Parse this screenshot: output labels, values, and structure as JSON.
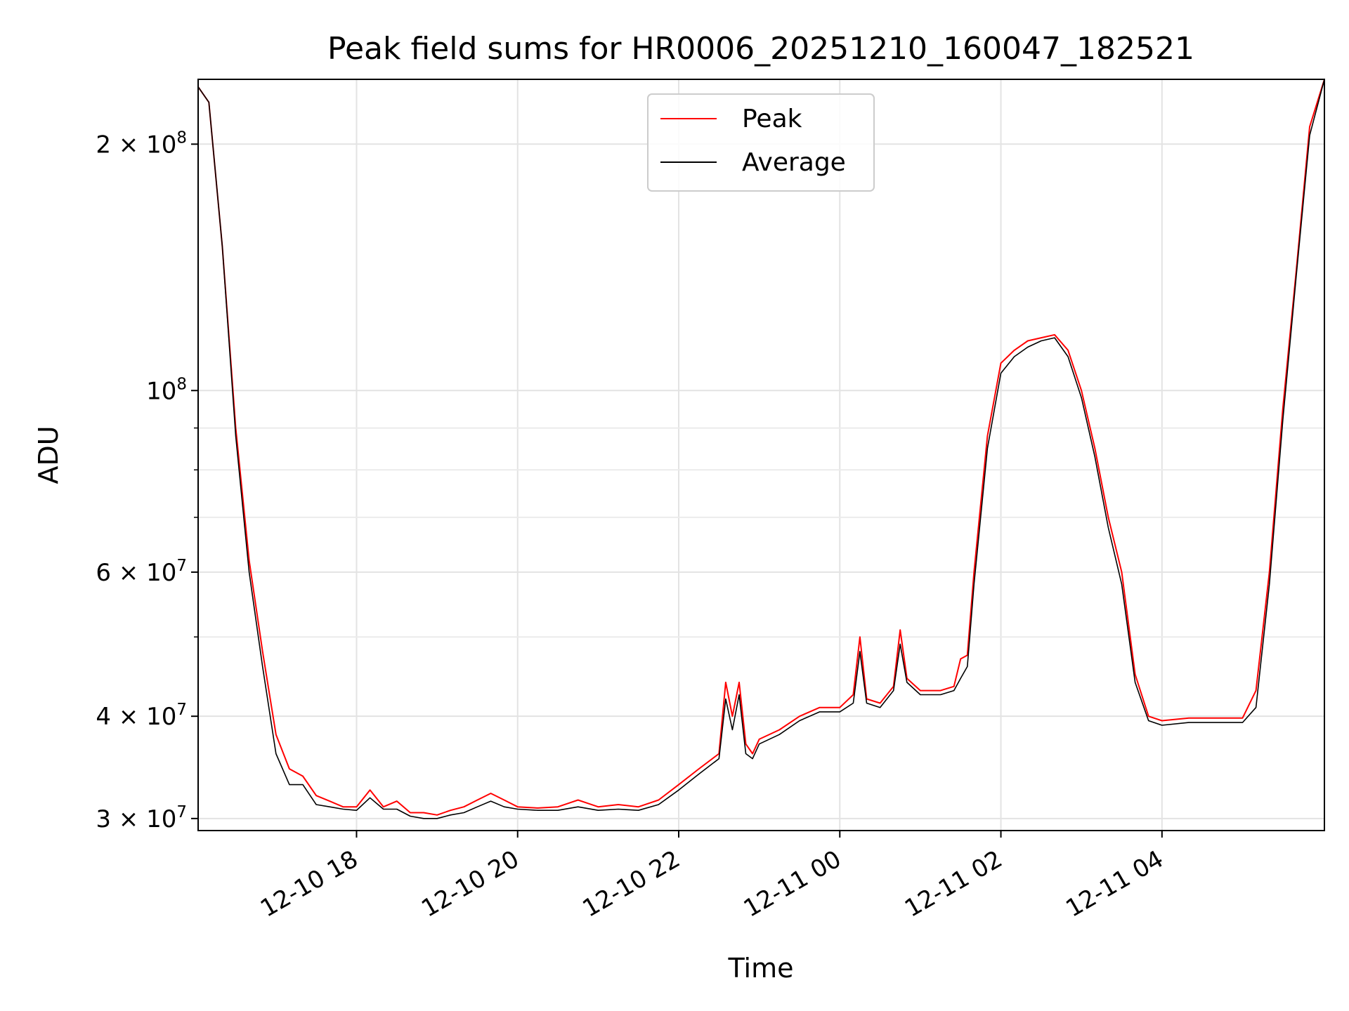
{
  "chart_data": {
    "type": "line",
    "title": "Peak field sums for HR0006_20251210_160047_182521",
    "xlabel": "Time",
    "ylabel": "ADU",
    "yscale": "log",
    "ylim": [
      29000000,
      240000000
    ],
    "xlim": [
      "2025-12-10 16:02",
      "2025-12-11 06:01"
    ],
    "grid": true,
    "legend_position": "upper center",
    "x_ticks": [
      {
        "value": "2025-12-10 18:00",
        "label": "12-10 18"
      },
      {
        "value": "2025-12-10 20:00",
        "label": "12-10 20"
      },
      {
        "value": "2025-12-10 22:00",
        "label": "12-10 22"
      },
      {
        "value": "2025-12-11 00:00",
        "label": "12-11 00"
      },
      {
        "value": "2025-12-11 02:00",
        "label": "12-11 02"
      },
      {
        "value": "2025-12-11 04:00",
        "label": "12-11 04"
      }
    ],
    "y_ticks": [
      {
        "value": 30000000,
        "base": "3 × 10",
        "exp": "7"
      },
      {
        "value": 40000000,
        "base": "4 × 10",
        "exp": "7"
      },
      {
        "value": 60000000,
        "base": "6 × 10",
        "exp": "7"
      },
      {
        "value": 100000000,
        "base": "10",
        "exp": "8"
      },
      {
        "value": 200000000,
        "base": "2 × 10",
        "exp": "8"
      }
    ],
    "y_minor_ticks": [
      50000000,
      70000000,
      80000000,
      90000000
    ],
    "series": [
      {
        "name": "Peak",
        "color": "#ff0000",
        "x": [
          "2025-12-10 16:02",
          "2025-12-10 16:10",
          "2025-12-10 16:20",
          "2025-12-10 16:30",
          "2025-12-10 16:40",
          "2025-12-10 16:50",
          "2025-12-10 17:00",
          "2025-12-10 17:10",
          "2025-12-10 17:20",
          "2025-12-10 17:30",
          "2025-12-10 17:40",
          "2025-12-10 17:50",
          "2025-12-10 18:00",
          "2025-12-10 18:10",
          "2025-12-10 18:20",
          "2025-12-10 18:30",
          "2025-12-10 18:40",
          "2025-12-10 18:50",
          "2025-12-10 19:00",
          "2025-12-10 19:10",
          "2025-12-10 19:20",
          "2025-12-10 19:30",
          "2025-12-10 19:40",
          "2025-12-10 19:50",
          "2025-12-10 20:00",
          "2025-12-10 20:15",
          "2025-12-10 20:30",
          "2025-12-10 20:45",
          "2025-12-10 21:00",
          "2025-12-10 21:15",
          "2025-12-10 21:30",
          "2025-12-10 21:45",
          "2025-12-10 22:00",
          "2025-12-10 22:15",
          "2025-12-10 22:30",
          "2025-12-10 22:35",
          "2025-12-10 22:40",
          "2025-12-10 22:45",
          "2025-12-10 22:50",
          "2025-12-10 22:55",
          "2025-12-10 23:00",
          "2025-12-10 23:15",
          "2025-12-10 23:30",
          "2025-12-10 23:45",
          "2025-12-11 00:00",
          "2025-12-11 00:10",
          "2025-12-11 00:15",
          "2025-12-11 00:20",
          "2025-12-11 00:30",
          "2025-12-11 00:40",
          "2025-12-11 00:45",
          "2025-12-11 00:50",
          "2025-12-11 01:00",
          "2025-12-11 01:15",
          "2025-12-11 01:25",
          "2025-12-11 01:30",
          "2025-12-11 01:35",
          "2025-12-11 01:40",
          "2025-12-11 01:50",
          "2025-12-11 02:00",
          "2025-12-11 02:10",
          "2025-12-11 02:20",
          "2025-12-11 02:30",
          "2025-12-11 02:40",
          "2025-12-11 02:50",
          "2025-12-11 03:00",
          "2025-12-11 03:10",
          "2025-12-11 03:20",
          "2025-12-11 03:30",
          "2025-12-11 03:40",
          "2025-12-11 03:50",
          "2025-12-11 04:00",
          "2025-12-11 04:20",
          "2025-12-11 04:40",
          "2025-12-11 05:00",
          "2025-12-11 05:10",
          "2025-12-11 05:20",
          "2025-12-11 05:30",
          "2025-12-11 05:40",
          "2025-12-11 05:50",
          "2025-12-11 06:01"
        ],
        "y": [
          235000000,
          225000000,
          150000000,
          90000000,
          62000000,
          48000000,
          38000000,
          34500000,
          33800000,
          32000000,
          31500000,
          31000000,
          31000000,
          32500000,
          31000000,
          31500000,
          30500000,
          30500000,
          30300000,
          30700000,
          31000000,
          31600000,
          32200000,
          31600000,
          31000000,
          30900000,
          31000000,
          31600000,
          31000000,
          31200000,
          31000000,
          31600000,
          33000000,
          34500000,
          36000000,
          44000000,
          40000000,
          44000000,
          37000000,
          36000000,
          37500000,
          38500000,
          40000000,
          41000000,
          41000000,
          42500000,
          50000000,
          42000000,
          41500000,
          43500000,
          51000000,
          44500000,
          43000000,
          43000000,
          43500000,
          47000000,
          47500000,
          60000000,
          88000000,
          108000000,
          112000000,
          115000000,
          116000000,
          117000000,
          112000000,
          100000000,
          85000000,
          70000000,
          60000000,
          45000000,
          40000000,
          39500000,
          39800000,
          39800000,
          39800000,
          43000000,
          60000000,
          95000000,
          140000000,
          210000000,
          240000000
        ]
      },
      {
        "name": "Average",
        "color": "#000000",
        "x": [
          "2025-12-10 16:02",
          "2025-12-10 16:10",
          "2025-12-10 16:20",
          "2025-12-10 16:30",
          "2025-12-10 16:40",
          "2025-12-10 16:50",
          "2025-12-10 17:00",
          "2025-12-10 17:10",
          "2025-12-10 17:20",
          "2025-12-10 17:30",
          "2025-12-10 17:40",
          "2025-12-10 17:50",
          "2025-12-10 18:00",
          "2025-12-10 18:10",
          "2025-12-10 18:20",
          "2025-12-10 18:30",
          "2025-12-10 18:40",
          "2025-12-10 18:50",
          "2025-12-10 19:00",
          "2025-12-10 19:10",
          "2025-12-10 19:20",
          "2025-12-10 19:30",
          "2025-12-10 19:40",
          "2025-12-10 19:50",
          "2025-12-10 20:00",
          "2025-12-10 20:15",
          "2025-12-10 20:30",
          "2025-12-10 20:45",
          "2025-12-10 21:00",
          "2025-12-10 21:15",
          "2025-12-10 21:30",
          "2025-12-10 21:45",
          "2025-12-10 22:00",
          "2025-12-10 22:15",
          "2025-12-10 22:30",
          "2025-12-10 22:35",
          "2025-12-10 22:40",
          "2025-12-10 22:45",
          "2025-12-10 22:50",
          "2025-12-10 22:55",
          "2025-12-10 23:00",
          "2025-12-10 23:15",
          "2025-12-10 23:30",
          "2025-12-10 23:45",
          "2025-12-11 00:00",
          "2025-12-11 00:10",
          "2025-12-11 00:15",
          "2025-12-11 00:20",
          "2025-12-11 00:30",
          "2025-12-11 00:40",
          "2025-12-11 00:45",
          "2025-12-11 00:50",
          "2025-12-11 01:00",
          "2025-12-11 01:15",
          "2025-12-11 01:25",
          "2025-12-11 01:30",
          "2025-12-11 01:35",
          "2025-12-11 01:40",
          "2025-12-11 01:50",
          "2025-12-11 02:00",
          "2025-12-11 02:10",
          "2025-12-11 02:20",
          "2025-12-11 02:30",
          "2025-12-11 02:40",
          "2025-12-11 02:50",
          "2025-12-11 03:00",
          "2025-12-11 03:10",
          "2025-12-11 03:20",
          "2025-12-11 03:30",
          "2025-12-11 03:40",
          "2025-12-11 03:50",
          "2025-12-11 04:00",
          "2025-12-11 04:20",
          "2025-12-11 04:40",
          "2025-12-11 05:00",
          "2025-12-11 05:10",
          "2025-12-11 05:20",
          "2025-12-11 05:30",
          "2025-12-11 05:40",
          "2025-12-11 05:50",
          "2025-12-11 06:01"
        ],
        "y": [
          235000000,
          225000000,
          150000000,
          88000000,
          60000000,
          46000000,
          36000000,
          33000000,
          33000000,
          31200000,
          31000000,
          30800000,
          30700000,
          31800000,
          30800000,
          30800000,
          30200000,
          30000000,
          30000000,
          30300000,
          30500000,
          31000000,
          31500000,
          31000000,
          30800000,
          30700000,
          30700000,
          31000000,
          30700000,
          30800000,
          30700000,
          31200000,
          32500000,
          34000000,
          35500000,
          42000000,
          38500000,
          42500000,
          36000000,
          35500000,
          37000000,
          38000000,
          39500000,
          40500000,
          40500000,
          41500000,
          48000000,
          41500000,
          41000000,
          43000000,
          49000000,
          44000000,
          42500000,
          42500000,
          43000000,
          44500000,
          46000000,
          58000000,
          85000000,
          105000000,
          110000000,
          113000000,
          115000000,
          116000000,
          110000000,
          98000000,
          83000000,
          68000000,
          58000000,
          44000000,
          39500000,
          39000000,
          39300000,
          39300000,
          39300000,
          41000000,
          58000000,
          92000000,
          138000000,
          205000000,
          240000000
        ]
      }
    ]
  }
}
